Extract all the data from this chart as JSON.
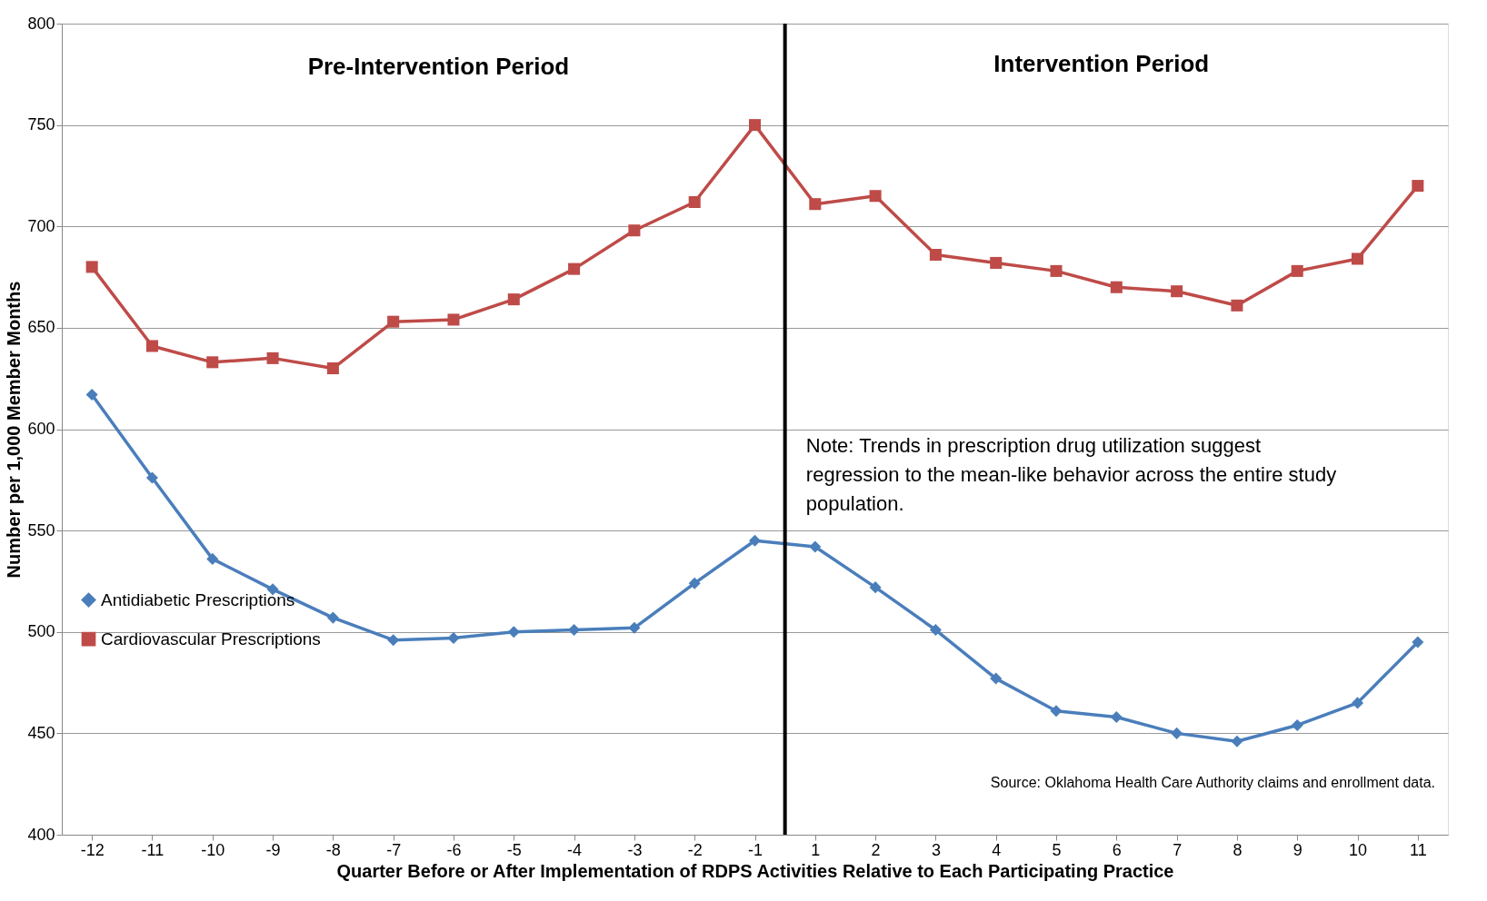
{
  "chart_data": {
    "type": "line",
    "xlabel": "Quarter Before or After Implementation of RDPS Activities Relative to Each Participating Practice",
    "ylabel": "Number per 1,000 Member Months",
    "categories": [
      "-12",
      "-11",
      "-10",
      "-9",
      "-8",
      "-7",
      "-6",
      "-5",
      "-4",
      "-3",
      "-2",
      "-1",
      "1",
      "2",
      "3",
      "4",
      "5",
      "6",
      "7",
      "8",
      "9",
      "10",
      "11"
    ],
    "series": [
      {
        "name": "Antidiabetic Prescriptions",
        "color": "#4a7ebb",
        "marker": "diamond",
        "values": [
          617,
          576,
          536,
          521,
          507,
          496,
          497,
          500,
          501,
          502,
          524,
          545,
          542,
          522,
          501,
          477,
          461,
          458,
          450,
          446,
          454,
          465,
          495
        ]
      },
      {
        "name": "Cardiovascular Prescriptions",
        "color": "#be4b48",
        "marker": "square",
        "values": [
          680,
          641,
          633,
          635,
          630,
          653,
          654,
          664,
          679,
          698,
          712,
          750,
          711,
          715,
          686,
          682,
          678,
          670,
          668,
          661,
          678,
          684,
          720
        ]
      }
    ],
    "ylim": [
      400,
      800
    ],
    "yticks": [
      400,
      450,
      500,
      550,
      600,
      650,
      700,
      750,
      800
    ],
    "grid": "y",
    "legend": "left",
    "line_style": "solid",
    "ref_lines": [
      {
        "axis": "x",
        "value": "-1",
        "color": "#000000"
      }
    ],
    "annotations": [
      "Pre-Intervention Period",
      "Intervention Period",
      "Note: Trends in prescription drug utilization suggest\nregression to the mean-like behavior across the entire study\npopulation.",
      "Source: Oklahoma Health Care Authority claims and enrollment data."
    ]
  }
}
